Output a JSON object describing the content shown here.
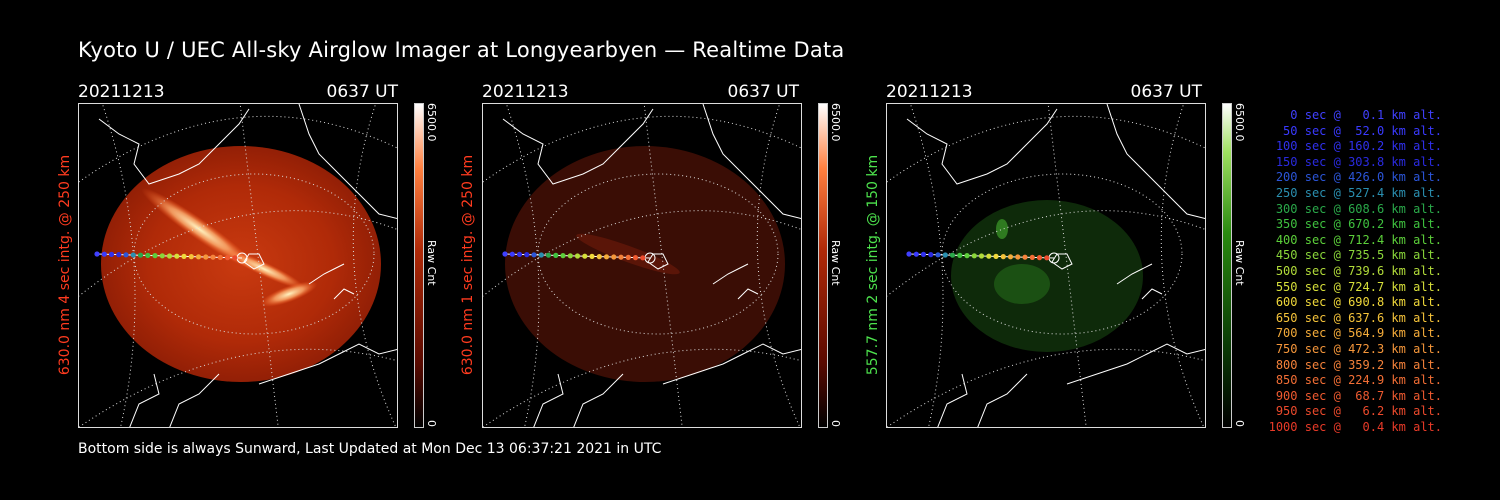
{
  "title": "Kyoto U / UEC All-sky Airglow Imager at Longyearbyen — Realtime Data",
  "footer": "Bottom side is always Sunward, Last Updated at Mon Dec 13 06:37:21 2021 in UTC",
  "panels": [
    {
      "date": "20211213",
      "time": "0637 UT",
      "label": "630.0 nm 4 sec intg. @ 250 km",
      "label_color": "#ff3b1f",
      "cbar_max": "6500.0",
      "cbar_min": "0",
      "cbar_unit": "Raw Cnt",
      "glow": "bright-red"
    },
    {
      "date": "20211213",
      "time": "0637 UT",
      "label": "630.0 nm 1 sec intg. @ 250 km",
      "label_color": "#ff3b1f",
      "cbar_max": "6500.0",
      "cbar_min": "0",
      "cbar_unit": "Raw Cnt",
      "glow": "dim-red"
    },
    {
      "date": "20211213",
      "time": "0637 UT",
      "label": "557.7 nm 2 sec intg. @ 150 km",
      "label_color": "#4de24d",
      "cbar_max": "6500.0",
      "cbar_min": "0",
      "cbar_unit": "Raw Cnt",
      "glow": "green"
    }
  ],
  "legend": [
    {
      "text": "0 sec @   0.1 km alt.",
      "color": "#4040ff"
    },
    {
      "text": "50 sec @  52.0 km alt.",
      "color": "#3a3aff"
    },
    {
      "text": "100 sec @ 160.2 km alt.",
      "color": "#3030ee"
    },
    {
      "text": "150 sec @ 303.8 km alt.",
      "color": "#2a2ae0"
    },
    {
      "text": "200 sec @ 426.0 km alt.",
      "color": "#2b55d8"
    },
    {
      "text": "250 sec @ 527.4 km alt.",
      "color": "#2a8fb0"
    },
    {
      "text": "300 sec @ 608.6 km alt.",
      "color": "#2aa94a"
    },
    {
      "text": "350 sec @ 670.2 km alt.",
      "color": "#3fc23f"
    },
    {
      "text": "400 sec @ 712.4 km alt.",
      "color": "#5ccf3a"
    },
    {
      "text": "450 sec @ 735.5 km alt.",
      "color": "#8ad63a"
    },
    {
      "text": "500 sec @ 739.6 km alt.",
      "color": "#b2dc3a"
    },
    {
      "text": "550 sec @ 724.7 km alt.",
      "color": "#d6df3a"
    },
    {
      "text": "600 sec @ 690.8 km alt.",
      "color": "#f0d83a"
    },
    {
      "text": "650 sec @ 637.6 km alt.",
      "color": "#f5c33a"
    },
    {
      "text": "700 sec @ 564.9 km alt.",
      "color": "#f5ac3a"
    },
    {
      "text": "750 sec @ 472.3 km alt.",
      "color": "#f5963a"
    },
    {
      "text": "800 sec @ 359.2 km alt.",
      "color": "#f5823a"
    },
    {
      "text": "850 sec @ 224.9 km alt.",
      "color": "#f26e35"
    },
    {
      "text": "900 sec @  68.7 km alt.",
      "color": "#ef5a30"
    },
    {
      "text": "950 sec @   6.2 km alt.",
      "color": "#ec4a2c"
    },
    {
      "text": "1000 sec @   0.4 km alt.",
      "color": "#e83a28"
    }
  ]
}
